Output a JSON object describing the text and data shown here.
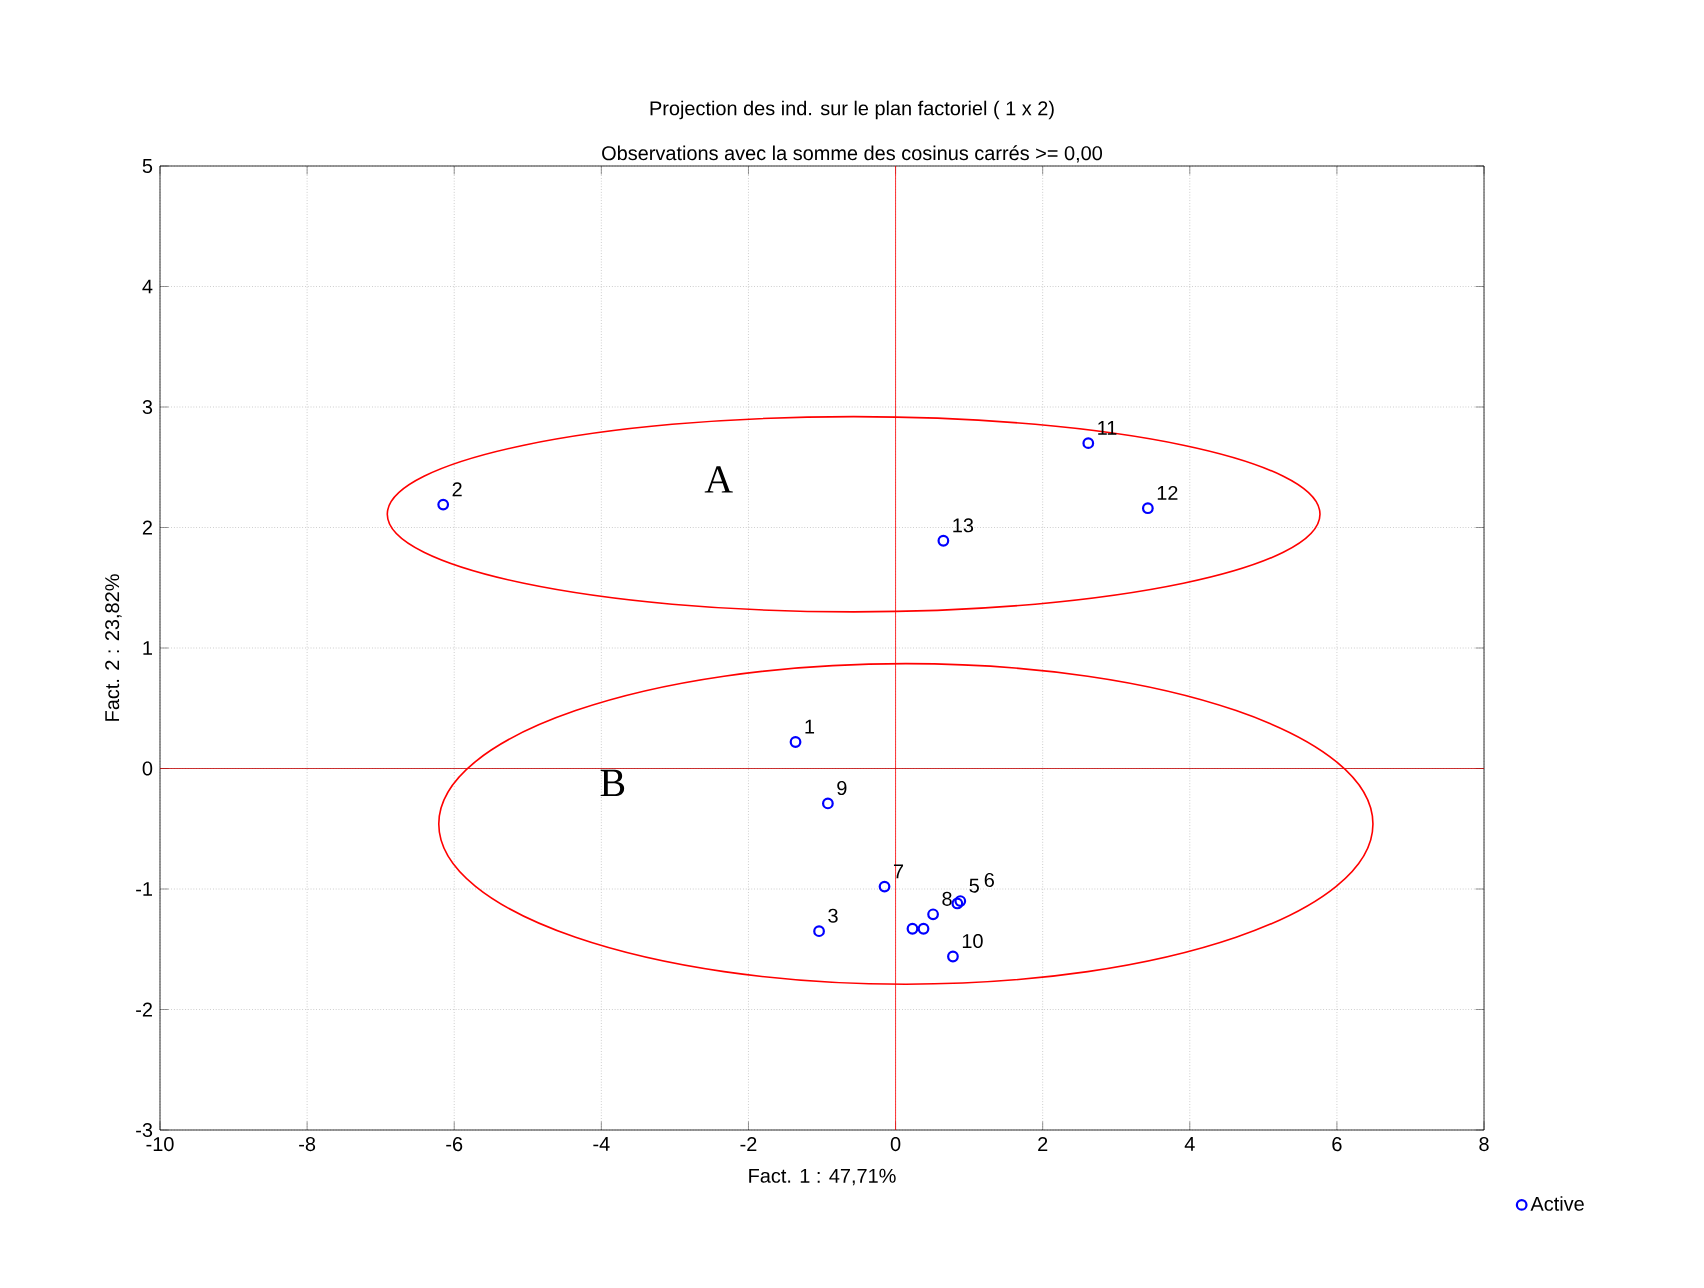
{
  "chart_data": {
    "type": "scatter",
    "title": "Projection des ind. sur le plan factoriel ( 1 x  2)",
    "subtitle": "Observations avec la somme des cosinus carrés >=  0,00",
    "xlabel": "Fact. 1 : 47,71%",
    "ylabel": "Fact. 2 : 23,82%",
    "x": [
      -1.36,
      -6.15,
      -1.04,
      0.23,
      0.88,
      0.84,
      -0.15,
      0.51,
      -0.92,
      0.78,
      2.62,
      3.43,
      0.65,
      0.38
    ],
    "series": [
      {
        "name": "Active",
        "color": "#0000ff",
        "values": [
          0.22,
          2.19,
          -1.35,
          -1.33,
          -1.1,
          -1.12,
          -0.98,
          -1.21,
          -0.29,
          -1.56,
          2.7,
          2.16,
          1.89,
          -1.33
        ]
      }
    ],
    "xlim": [
      -10,
      8
    ],
    "xticks": [
      -10,
      -8,
      -6,
      -4,
      -2,
      0,
      2,
      4,
      6,
      8
    ],
    "ylim": [
      -3,
      5
    ],
    "yticks": [
      -3,
      -2,
      -1,
      0,
      1,
      2,
      3,
      4,
      5
    ],
    "grid": true,
    "legend": "bottom right",
    "marker": "circle",
    "ref_lines": [
      {
        "axis": "x",
        "value": 0,
        "color": "#ff0000"
      },
      {
        "axis": "y",
        "value": 0,
        "color": "#c00000"
      }
    ],
    "annotations": [
      {
        "text": "1",
        "x": -1.36,
        "y": 0.22
      },
      {
        "text": "2",
        "x": -6.15,
        "y": 2.19
      },
      {
        "text": "3",
        "x": -1.04,
        "y": -1.35
      },
      {
        "text": "5",
        "x": 0.88,
        "y": -1.1
      },
      {
        "text": "6",
        "x": 0.84,
        "y": -1.12
      },
      {
        "text": "7",
        "x": -0.15,
        "y": -0.98
      },
      {
        "text": "8",
        "x": 0.51,
        "y": -1.21
      },
      {
        "text": "9",
        "x": -0.92,
        "y": -0.29
      },
      {
        "text": "10",
        "x": 0.78,
        "y": -1.56
      },
      {
        "text": "11",
        "x": 2.62,
        "y": 2.7
      },
      {
        "text": "12",
        "x": 3.43,
        "y": 2.16
      },
      {
        "text": "13",
        "x": 0.65,
        "y": 1.89
      },
      "A",
      "B"
    ]
  }
}
